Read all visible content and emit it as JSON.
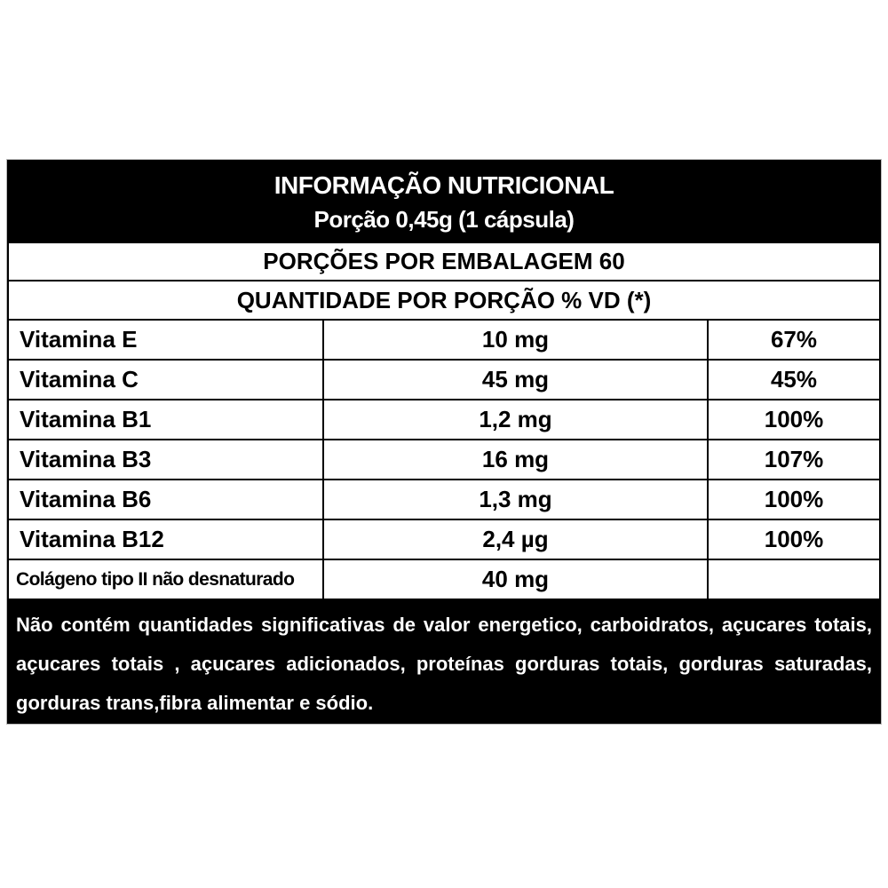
{
  "label": {
    "title": "INFORMAÇÃO NUTRICIONAL",
    "serving_size": "Porção 0,45g (1 cápsula)",
    "servings_per_package": "PORÇÕES POR EMBALAGEM 60",
    "quantity_header": "QUANTIDADE POR PORÇÃO % VD (*)",
    "rows": [
      {
        "name": "Vitamina E",
        "amount": "10 mg",
        "dv": "67%"
      },
      {
        "name": "Vitamina C",
        "amount": "45 mg",
        "dv": "45%"
      },
      {
        "name": "Vitamina B1",
        "amount": "1,2 mg",
        "dv": "100%"
      },
      {
        "name": "Vitamina B3",
        "amount": "16 mg",
        "dv": "107%"
      },
      {
        "name": "Vitamina B6",
        "amount": "1,3 mg",
        "dv": "100%"
      },
      {
        "name": "Vitamina B12",
        "amount": "2,4 µg",
        "dv": "100%"
      },
      {
        "name": "Colágeno tipo II não desnaturado",
        "amount": "40 mg",
        "dv": ""
      }
    ],
    "footnote_lines": [
      "Não contém quantidades significativas de valor energetico, carboidratos, açucares totais,",
      "açucares totais , açucares adicionados, proteínas gorduras totais, gorduras saturadas,",
      "gorduras trans,fibra alimentar e sódio."
    ],
    "colors": {
      "band_bg": "#000000",
      "band_text": "#ffffff",
      "body_bg": "#ffffff",
      "text": "#000000",
      "border": "#000000"
    }
  }
}
